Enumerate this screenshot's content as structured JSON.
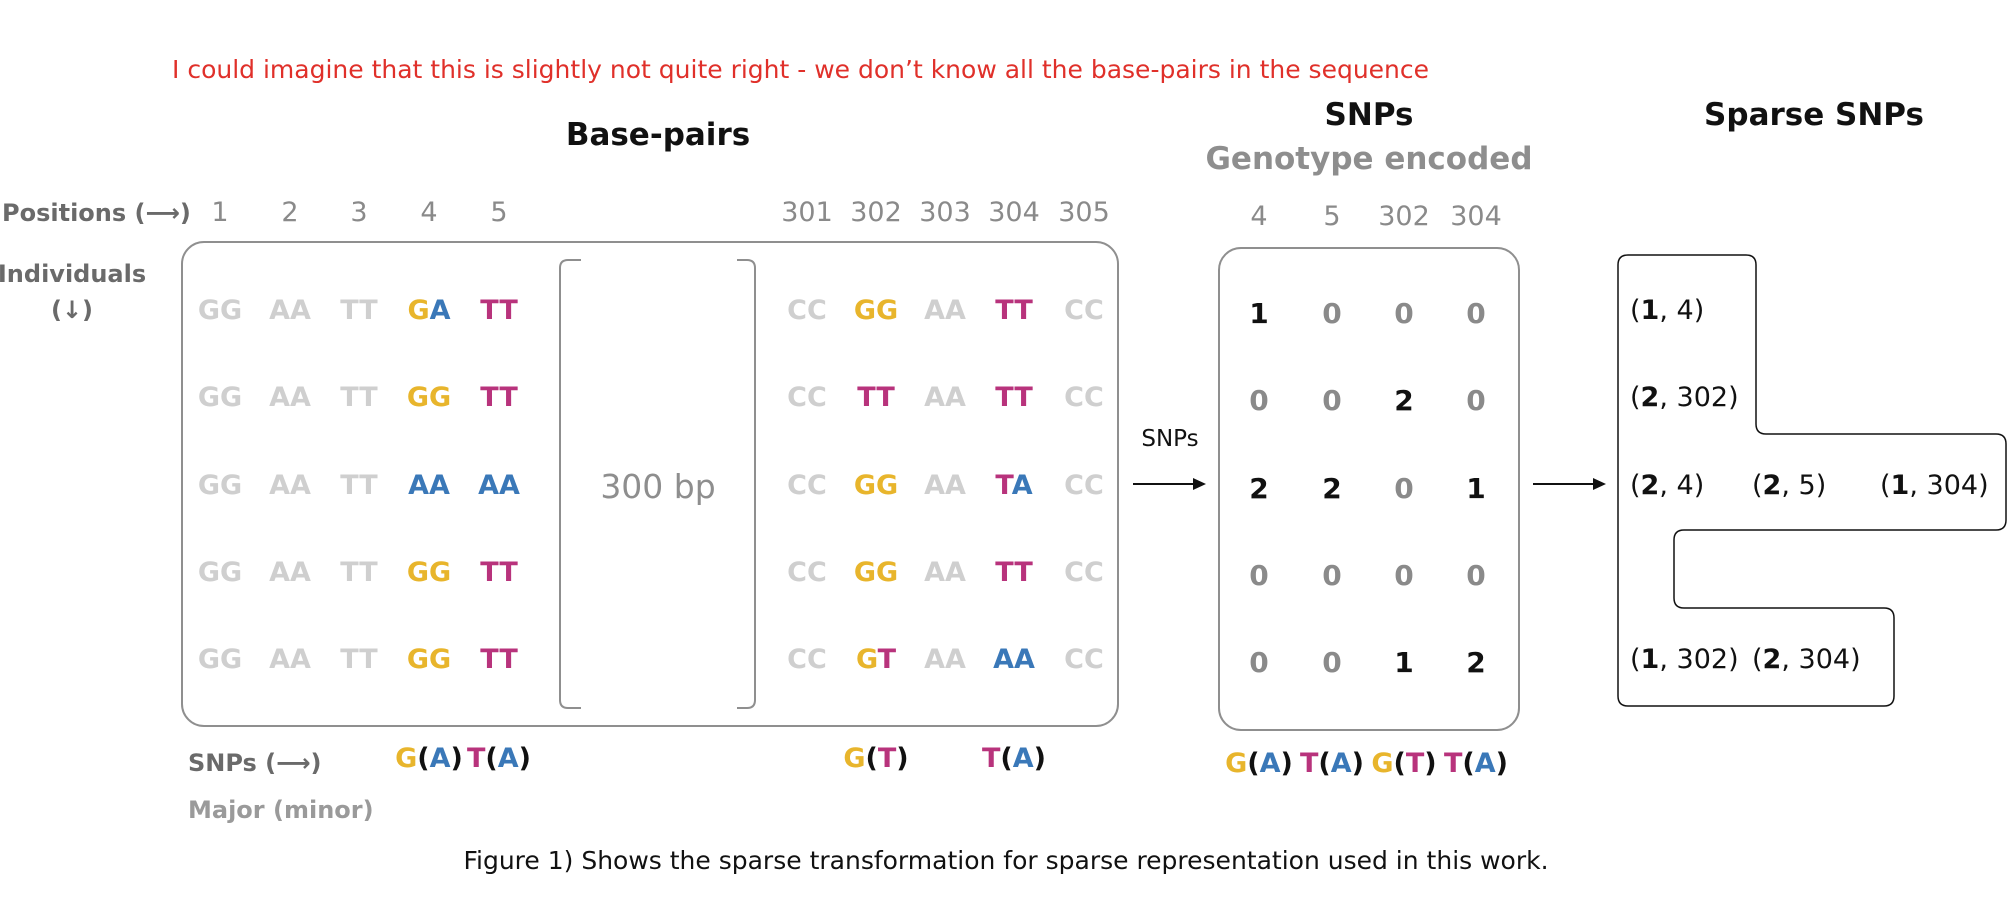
{
  "note": "I could imagine that this is slightly not quite right - we don’t know all the base-pairs in the sequence",
  "titles": {
    "base_pairs": "Base-pairs",
    "snps": "SNPs",
    "genotype": "Genotype encoded",
    "sparse": "Sparse  SNPs"
  },
  "labels": {
    "positions": "Positions (⟶)",
    "individuals": "Individuals",
    "individuals_arrow": "(↓)",
    "snps_axis": "SNPs (⟶)",
    "major_minor": "Major (minor)",
    "gap": "300 bp",
    "arrow_label": "SNPs"
  },
  "caption": "Figure 1) Shows the sparse transformation for sparse representation used in this work.",
  "colors": {
    "G": "#e8b52c",
    "A": "#3a78b8",
    "T": "#b8337c",
    "C": "#cfcfcf",
    "nonsnp": "#cfcfcf",
    "zero": "#8a8a8a",
    "nonzero": "#111111"
  },
  "positions_left": [
    "1",
    "2",
    "3",
    "4",
    "5"
  ],
  "positions_right": [
    "301",
    "302",
    "303",
    "304",
    "305"
  ],
  "grid_left": [
    [
      [
        "GG",
        0
      ],
      [
        "AA",
        0
      ],
      [
        "TT",
        0
      ],
      [
        "GA",
        1
      ],
      [
        "TT",
        1
      ]
    ],
    [
      [
        "GG",
        0
      ],
      [
        "AA",
        0
      ],
      [
        "TT",
        0
      ],
      [
        "GG",
        1
      ],
      [
        "TT",
        1
      ]
    ],
    [
      [
        "GG",
        0
      ],
      [
        "AA",
        0
      ],
      [
        "TT",
        0
      ],
      [
        "AA",
        1
      ],
      [
        "AA",
        1
      ]
    ],
    [
      [
        "GG",
        0
      ],
      [
        "AA",
        0
      ],
      [
        "TT",
        0
      ],
      [
        "GG",
        1
      ],
      [
        "TT",
        1
      ]
    ],
    [
      [
        "GG",
        0
      ],
      [
        "AA",
        0
      ],
      [
        "TT",
        0
      ],
      [
        "GG",
        1
      ],
      [
        "TT",
        1
      ]
    ]
  ],
  "grid_right": [
    [
      [
        "CC",
        0
      ],
      [
        "GG",
        1
      ],
      [
        "AA",
        0
      ],
      [
        "TT",
        1
      ],
      [
        "CC",
        0
      ]
    ],
    [
      [
        "CC",
        0
      ],
      [
        "TT",
        1
      ],
      [
        "AA",
        0
      ],
      [
        "TT",
        1
      ],
      [
        "CC",
        0
      ]
    ],
    [
      [
        "CC",
        0
      ],
      [
        "GG",
        1
      ],
      [
        "AA",
        0
      ],
      [
        "TA",
        1
      ],
      [
        "CC",
        0
      ]
    ],
    [
      [
        "CC",
        0
      ],
      [
        "GG",
        1
      ],
      [
        "AA",
        0
      ],
      [
        "TT",
        1
      ],
      [
        "CC",
        0
      ]
    ],
    [
      [
        "CC",
        0
      ],
      [
        "GT",
        1
      ],
      [
        "AA",
        0
      ],
      [
        "AA",
        1
      ],
      [
        "CC",
        0
      ]
    ]
  ],
  "snp_alleles_left": [
    {
      "col": 3,
      "major": "G",
      "minor": "A"
    },
    {
      "col": 4,
      "major": "T",
      "minor": "A"
    }
  ],
  "snp_alleles_right": [
    {
      "col": 1,
      "major": "G",
      "minor": "T"
    },
    {
      "col": 3,
      "major": "T",
      "minor": "A"
    }
  ],
  "genotype_positions": [
    "4",
    "5",
    "302",
    "304"
  ],
  "genotype_matrix": [
    [
      1,
      0,
      0,
      0
    ],
    [
      0,
      0,
      2,
      0
    ],
    [
      2,
      2,
      0,
      1
    ],
    [
      0,
      0,
      0,
      0
    ],
    [
      0,
      0,
      1,
      2
    ]
  ],
  "genotype_alleles": [
    {
      "major": "G",
      "minor": "A"
    },
    {
      "major": "T",
      "minor": "A"
    },
    {
      "major": "G",
      "minor": "T"
    },
    {
      "major": "T",
      "minor": "A"
    }
  ],
  "sparse_rows": [
    [
      {
        "value": "1",
        "pos": "4"
      }
    ],
    [
      {
        "value": "2",
        "pos": "302"
      }
    ],
    [
      {
        "value": "2",
        "pos": "4"
      },
      {
        "value": "2",
        "pos": "5"
      },
      {
        "value": "1",
        "pos": "304"
      }
    ],
    [],
    [
      {
        "value": "1",
        "pos": "302"
      },
      {
        "value": "2",
        "pos": "304"
      }
    ]
  ]
}
